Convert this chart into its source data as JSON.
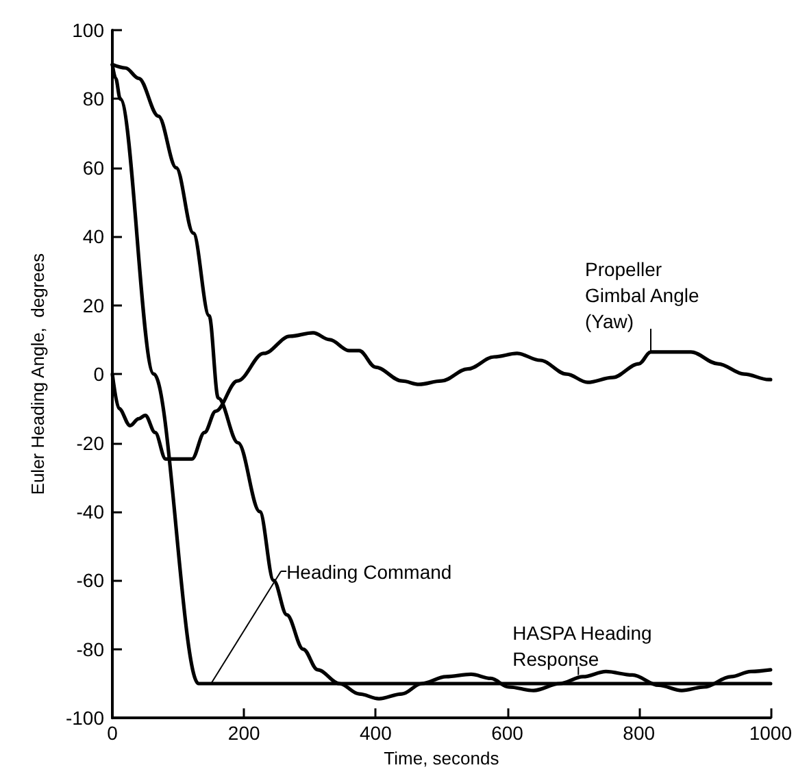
{
  "chart_data": {
    "type": "line",
    "xlabel": "Time, seconds",
    "ylabel": "Euler Heading Angle,  degrees",
    "xlim": [
      0,
      1000
    ],
    "xticks": [
      0,
      200,
      400,
      600,
      800,
      1000
    ],
    "ylim": [
      -100,
      100
    ],
    "yticks": [
      -100,
      -80,
      -60,
      -40,
      -20,
      0,
      20,
      40,
      60,
      80,
      100
    ],
    "grid": false,
    "marker": "none",
    "line_style": "solid",
    "series": [
      {
        "color": "#000000",
        "x": [
          0,
          5,
          12,
          63,
          131,
          1000
        ],
        "values": [
          90,
          86,
          80,
          0,
          -90,
          -90
        ]
      },
      {
        "color": "#000000",
        "x": [
          0,
          20,
          40,
          70,
          97,
          123,
          147,
          161,
          191,
          224,
          245,
          265,
          290,
          312,
          345,
          375,
          405,
          440,
          470,
          507,
          545,
          575,
          602,
          640,
          680,
          715,
          750,
          790,
          830,
          865,
          899,
          940,
          970,
          1000
        ],
        "values": [
          90,
          89,
          86,
          75,
          60,
          41,
          17,
          -7,
          -20,
          -40,
          -60,
          -70,
          -80,
          -86,
          -90,
          -93,
          -94.4,
          -93,
          -90,
          -88,
          -87.3,
          -88.5,
          -91,
          -92,
          -90,
          -88,
          -86.5,
          -87.5,
          -90.5,
          -92,
          -91,
          -88,
          -86.5,
          -86
        ]
      },
      {
        "color": "#000000",
        "x": [
          0,
          10,
          27,
          40,
          50,
          65,
          81,
          121,
          140,
          157,
          190,
          230,
          270,
          305,
          330,
          360,
          375,
          400,
          440,
          466,
          500,
          540,
          580,
          615,
          650,
          690,
          722,
          760,
          800,
          818,
          879,
          920,
          960,
          997,
          1000
        ],
        "values": [
          0,
          -10,
          -15,
          -13,
          -12,
          -17,
          -24.7,
          -24.7,
          -17,
          -10.8,
          -2,
          6,
          11,
          12,
          10,
          6.8,
          6.8,
          2,
          -2,
          -3,
          -2,
          1.5,
          5,
          6,
          4,
          0,
          -2.4,
          -1,
          3,
          6.4,
          6.4,
          3,
          0,
          -1.6,
          -1.6
        ]
      }
    ],
    "annotations": [
      {
        "text": "Heading Command",
        "x": 150,
        "y": -90
      },
      {
        "text": "Propeller\nGimbal Angle\n(Yaw)",
        "x": 818,
        "y": 6.4
      },
      {
        "text": "HASPA Heading\nResponse",
        "x": 708,
        "y": -87.5
      }
    ]
  }
}
